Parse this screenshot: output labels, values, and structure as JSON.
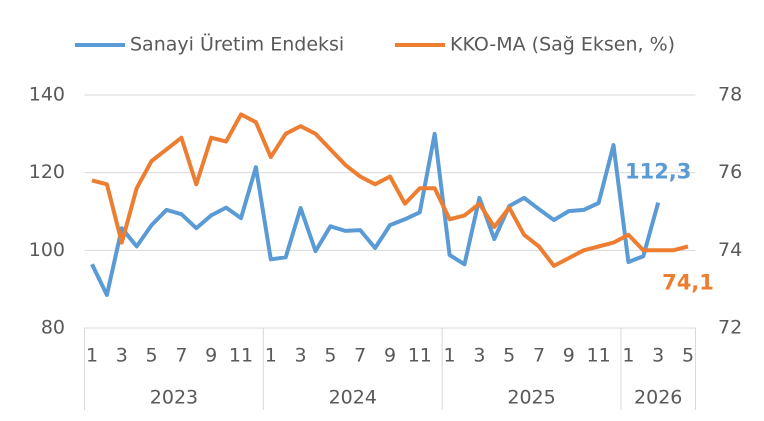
{
  "chart_data": {
    "type": "line",
    "categories": [
      "1",
      null,
      "3",
      null,
      "5",
      null,
      "7",
      null,
      "9",
      null,
      "11",
      null,
      "1",
      null,
      "3",
      null,
      "5",
      null,
      "7",
      null,
      "9",
      null,
      "11",
      null,
      "1",
      null,
      "3",
      null,
      "5",
      null,
      "7",
      null,
      "9",
      null,
      "11",
      null,
      "1",
      null,
      "3",
      null,
      "5"
    ],
    "groups": [
      {
        "name": "2023",
        "size": 12
      },
      {
        "name": "2024",
        "size": 12
      },
      {
        "name": "2025",
        "size": 12
      },
      {
        "name": "2026",
        "size": 5
      }
    ],
    "series": [
      {
        "name": "Sanayi Üretim Endeksi",
        "color": "#5b9bd5",
        "axis": "y",
        "values": [
          96.4,
          88.5,
          105.7,
          101,
          106.5,
          110.4,
          109.3,
          105.7,
          109,
          111,
          108.3,
          121.4,
          97.7,
          98.2,
          110.9,
          99.8,
          106.2,
          105,
          105.2,
          100.6,
          106.5,
          108,
          109.8,
          130,
          98.8,
          96.4,
          113.5,
          102.9,
          111.4,
          113.5,
          110.6,
          107.8,
          110.1,
          110.4,
          112.2,
          127.1,
          97,
          98.5,
          112.3,
          null,
          null
        ],
        "value_labels": [
          null,
          null,
          null,
          null,
          null,
          null,
          null,
          null,
          null,
          null,
          null,
          null,
          null,
          null,
          null,
          null,
          null,
          null,
          null,
          null,
          null,
          null,
          null,
          null,
          null,
          null,
          null,
          null,
          null,
          null,
          null,
          null,
          null,
          null,
          null,
          null,
          null,
          null,
          "112,3",
          null,
          null
        ]
      },
      {
        "name": "KKO-MA (Sağ Eksen, %)",
        "color": "#ed7d31",
        "axis": "y2",
        "values": [
          75.8,
          75.7,
          74.2,
          75.6,
          76.3,
          76.6,
          76.9,
          75.7,
          76.9,
          76.8,
          77.5,
          77.3,
          76.4,
          77,
          77.2,
          77,
          76.6,
          76.2,
          75.9,
          75.7,
          75.9,
          75.2,
          75.6,
          75.6,
          74.8,
          74.9,
          75.2,
          74.6,
          75.1,
          74.4,
          74.1,
          73.6,
          73.8,
          74,
          74.1,
          74.2,
          74.4,
          74,
          74,
          74,
          74.1
        ],
        "value_labels": [
          null,
          null,
          null,
          null,
          null,
          null,
          null,
          null,
          null,
          null,
          null,
          null,
          null,
          null,
          null,
          null,
          null,
          null,
          null,
          null,
          null,
          null,
          null,
          null,
          null,
          null,
          null,
          null,
          null,
          null,
          null,
          null,
          null,
          null,
          null,
          null,
          null,
          null,
          null,
          null,
          "74,1"
        ]
      }
    ],
    "ylim": [
      80,
      140
    ],
    "yticks": [
      80,
      100,
      120,
      140
    ],
    "y2lim": [
      72,
      78
    ],
    "y2ticks": [
      72,
      74,
      76,
      78
    ],
    "grid": true,
    "legend": "top"
  }
}
